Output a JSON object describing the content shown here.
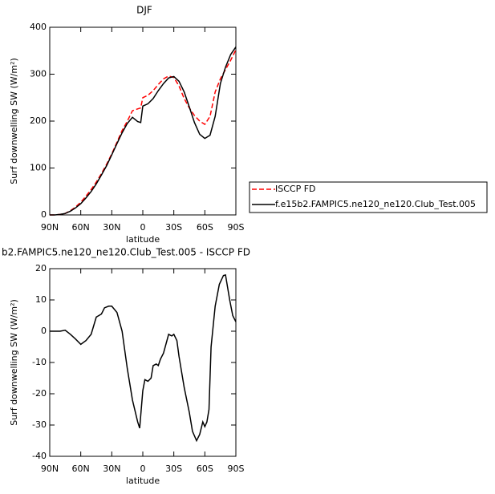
{
  "chart_data": [
    {
      "type": "line",
      "title": "DJF",
      "xlabel": "latitude",
      "ylabel": "Surf downwelling SW (W/m²)",
      "x": [
        90,
        85,
        80,
        75,
        70,
        65,
        60,
        55,
        50,
        45,
        40,
        35,
        30,
        25,
        20,
        15,
        10,
        5,
        2,
        0,
        -5,
        -10,
        -15,
        -20,
        -25,
        -30,
        -35,
        -40,
        -45,
        -50,
        -55,
        -60,
        -65,
        -70,
        -75,
        -80,
        -85,
        -90
      ],
      "xlim": [
        90,
        -90
      ],
      "xticks": [
        {
          "value": 90,
          "label": "90N"
        },
        {
          "value": 60,
          "label": "60N"
        },
        {
          "value": 30,
          "label": "30N"
        },
        0,
        {
          "value": -30,
          "label": "30S"
        },
        {
          "value": -60,
          "label": "60S"
        },
        {
          "value": -90,
          "label": "90S"
        }
      ],
      "ylim": [
        0,
        400
      ],
      "yticks": [
        0,
        100,
        200,
        300,
        400
      ],
      "legend": "outside-right",
      "series": [
        {
          "name": "ISCCP FD",
          "color": "#ff0000",
          "linestyle": "dashed",
          "values": [
            0,
            0,
            1,
            3,
            9,
            17,
            27,
            40,
            54,
            70,
            88,
            108,
            130,
            155,
            180,
            200,
            222,
            226,
            228,
            250,
            255,
            265,
            278,
            290,
            296,
            293,
            275,
            248,
            228,
            212,
            200,
            193,
            210,
            262,
            290,
            310,
            330,
            352
          ]
        },
        {
          "name": "f.e15b2.FAMPIC5.ne120_ne120.Club_Test.005",
          "color": "#000000",
          "linestyle": "solid",
          "values": [
            0,
            0,
            1,
            3,
            8,
            15,
            24,
            36,
            50,
            66,
            85,
            105,
            128,
            152,
            175,
            195,
            208,
            199,
            197,
            232,
            237,
            248,
            265,
            280,
            292,
            295,
            285,
            262,
            230,
            197,
            172,
            163,
            170,
            210,
            280,
            315,
            342,
            358
          ]
        }
      ]
    },
    {
      "type": "line",
      "title": "b2.FAMPIC5.ne120_ne120.Club_Test.005 - ISCCP FD",
      "xlabel": "latitude",
      "ylabel": "Surf downwelling SW (W/m²)",
      "x": [
        90,
        85,
        80,
        75,
        70,
        65,
        60,
        55,
        50,
        45,
        40,
        37,
        33,
        30,
        25,
        20,
        15,
        10,
        5,
        3,
        0,
        -2,
        -5,
        -8,
        -10,
        -13,
        -15,
        -17,
        -20,
        -25,
        -28,
        -30,
        -33,
        -35,
        -40,
        -45,
        -48,
        -52,
        -55,
        -58,
        -60,
        -62,
        -64,
        -66,
        -70,
        -74,
        -78,
        -80,
        -84,
        -87,
        -90
      ],
      "xlim": [
        90,
        -90
      ],
      "xticks": [
        {
          "value": 90,
          "label": "90N"
        },
        {
          "value": 60,
          "label": "60N"
        },
        {
          "value": 30,
          "label": "30N"
        },
        0,
        {
          "value": -30,
          "label": "30S"
        },
        {
          "value": -60,
          "label": "60S"
        },
        {
          "value": -90,
          "label": "90S"
        }
      ],
      "ylim": [
        -40,
        20
      ],
      "yticks": [
        -40,
        -30,
        -20,
        -10,
        0,
        10,
        20
      ],
      "series": [
        {
          "color": "#000000",
          "linestyle": "solid",
          "values": [
            0,
            0,
            0,
            0.3,
            -1,
            -2.5,
            -4.2,
            -3,
            -1,
            4.5,
            5.5,
            7.5,
            8,
            8,
            6,
            0,
            -12,
            -22,
            -29,
            -31,
            -19,
            -15.5,
            -16,
            -15,
            -11,
            -10.5,
            -11,
            -9,
            -7,
            -1,
            -1.5,
            -1,
            -3,
            -8,
            -18,
            -26,
            -32,
            -35,
            -33,
            -29,
            -30.5,
            -29,
            -25,
            -5,
            8,
            15,
            17.8,
            18,
            10,
            5,
            3
          ]
        }
      ]
    }
  ]
}
